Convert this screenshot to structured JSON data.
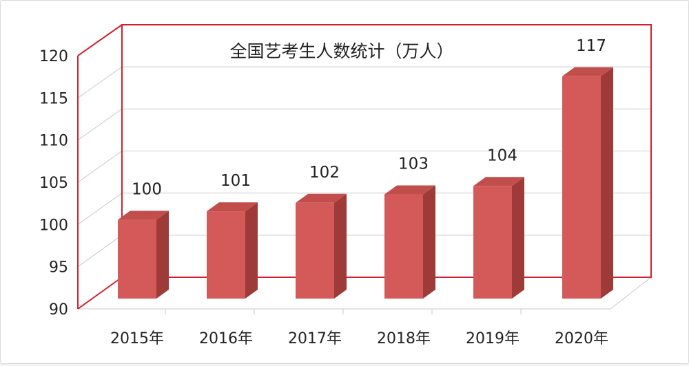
{
  "chart_data": {
    "type": "bar",
    "title": "全国艺考生人数统计（万人）",
    "categories": [
      "2015年",
      "2016年",
      "2017年",
      "2018年",
      "2019年",
      "2020年"
    ],
    "values": [
      100,
      101,
      102,
      103,
      104,
      117
    ],
    "data_labels": [
      "100",
      "101",
      "102",
      "103",
      "104",
      "117"
    ],
    "yticks": [
      "90",
      "95",
      "100",
      "105",
      "110",
      "115",
      "120"
    ],
    "ylim": [
      90,
      120
    ],
    "grid": true,
    "style": "3d-column",
    "colors": {
      "bar_front": "#d45a5a",
      "bar_side": "#9e3b38",
      "bar_top": "#c14e4b",
      "frame": "#d02030",
      "grid": "#c9c9c9",
      "text": "#222222"
    }
  }
}
